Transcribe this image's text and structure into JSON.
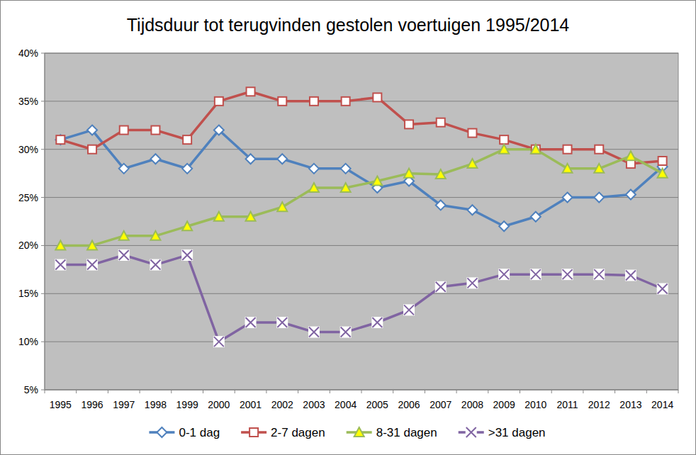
{
  "chart_data": {
    "type": "line",
    "title": "Tijdsduur tot terugvinden gestolen voertuigen 1995/2014",
    "categories": [
      "1995",
      "1996",
      "1997",
      "1998",
      "1999",
      "2000",
      "2001",
      "2002",
      "2003",
      "2004",
      "2005",
      "2006",
      "2007",
      "2008",
      "2009",
      "2010",
      "2011",
      "2012",
      "2013",
      "2014"
    ],
    "series": [
      {
        "name": "0-1 dag",
        "color": "#4f81bd",
        "marker": "diamond",
        "values": [
          31,
          32,
          28,
          29,
          28,
          32,
          29,
          29,
          28,
          28,
          26,
          26.7,
          24.2,
          23.7,
          22,
          23,
          25,
          25,
          25.3,
          28.2
        ]
      },
      {
        "name": "2-7 dagen",
        "color": "#c0504d",
        "marker": "square",
        "values": [
          31,
          30,
          32,
          32,
          31,
          35,
          36,
          35,
          35,
          35,
          35.4,
          32.6,
          32.8,
          31.7,
          31,
          30,
          30,
          30,
          28.5,
          28.8
        ]
      },
      {
        "name": "8-31 dagen",
        "color": "#9bbb59",
        "marker": "triangle",
        "values": [
          20,
          20,
          21,
          21,
          22,
          23,
          23,
          24,
          26,
          26,
          26.7,
          27.5,
          27.4,
          28.5,
          30,
          30,
          28,
          28,
          29.3,
          27.5
        ]
      },
      {
        "name": ">31 dagen",
        "color": "#8064a2",
        "marker": "x",
        "values": [
          18,
          18,
          19,
          18,
          19,
          10,
          12,
          12,
          11,
          11,
          12,
          13.3,
          15.7,
          16.1,
          17,
          17,
          17,
          17,
          16.9,
          15.5
        ]
      }
    ],
    "ylim": [
      5,
      40
    ],
    "yticks": [
      {
        "value": 5,
        "label": "5%"
      },
      {
        "value": 10,
        "label": "10%"
      },
      {
        "value": 15,
        "label": "15%"
      },
      {
        "value": 20,
        "label": "20%"
      },
      {
        "value": 25,
        "label": "25%"
      },
      {
        "value": 30,
        "label": "30%"
      },
      {
        "value": 35,
        "label": "35%"
      },
      {
        "value": 40,
        "label": "40%"
      }
    ],
    "grid": true,
    "legend": "bottom"
  }
}
